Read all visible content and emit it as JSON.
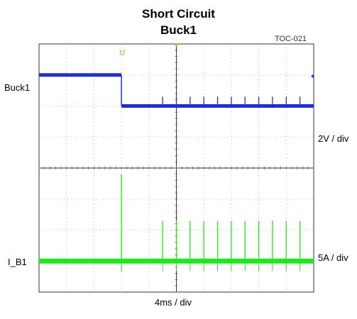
{
  "chart_data": {
    "type": "line",
    "title": "Short Circuit",
    "subtitle": "Buck1",
    "figure_id": "TOC-021",
    "x_scale": "4ms / div",
    "x_divisions": 10,
    "short_event_div": 3.0,
    "series": [
      {
        "name": "Buck1",
        "scale": "2V / div",
        "color": "#1f2fcf",
        "high_level_div": 1.0,
        "low_level_div": 2.0,
        "spike_times_div": [
          4.5,
          5.0,
          5.5,
          6.0,
          6.5,
          7.0,
          7.5,
          8.0,
          8.5,
          9.0,
          9.5
        ],
        "spike_height_div": 0.3
      },
      {
        "name": "I_B1",
        "scale": "5A / div",
        "color": "#22e622",
        "baseline_div": 7.0,
        "initial_spike_peak_div": 4.2,
        "spike_times_div": [
          4.5,
          5.0,
          5.5,
          6.0,
          6.5,
          7.0,
          7.5,
          8.0,
          8.5,
          9.0,
          9.5
        ],
        "spike_peak_div": 5.7
      }
    ]
  }
}
